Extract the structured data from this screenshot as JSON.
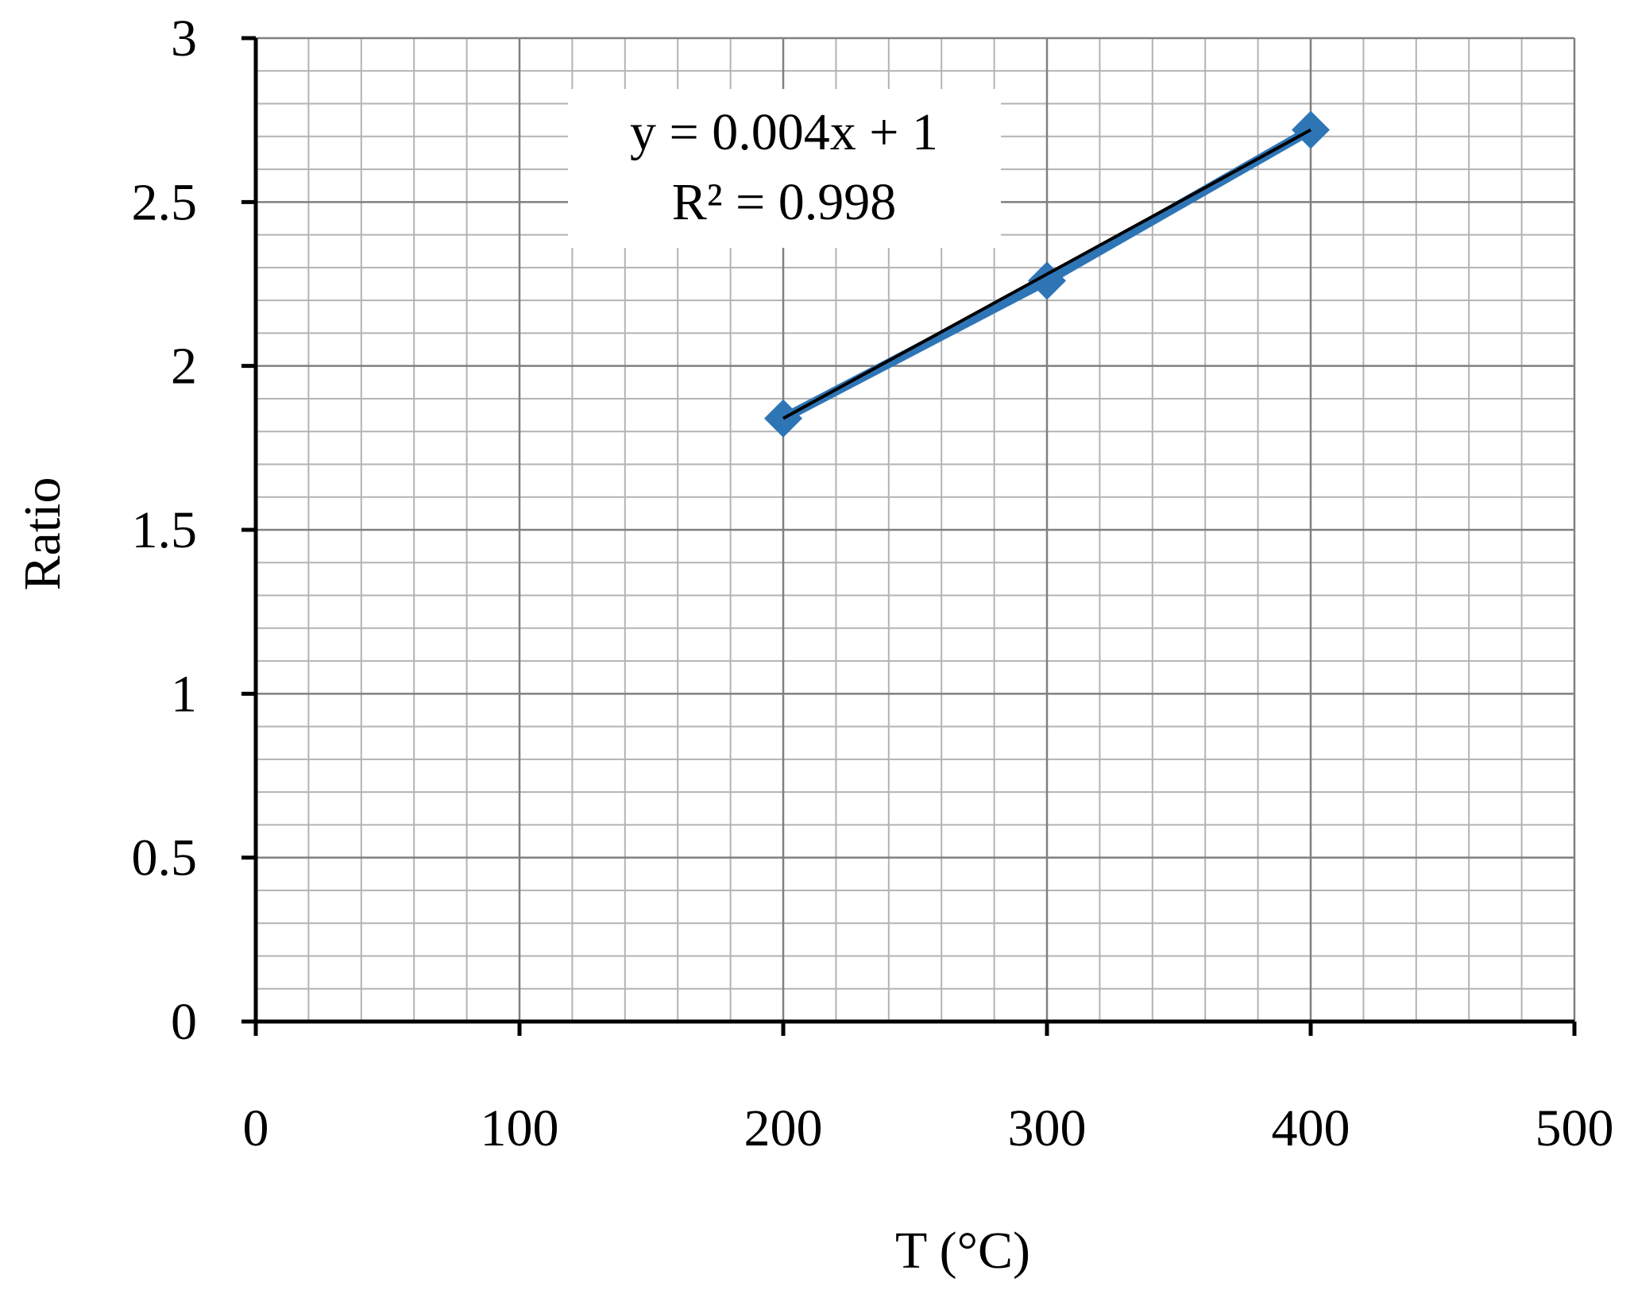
{
  "chart_data": {
    "type": "scatter",
    "xlabel": "T (°C)",
    "ylabel": "Ratio",
    "xlim": [
      0,
      500
    ],
    "ylim": [
      0,
      3
    ],
    "x_ticks": [
      "0",
      "100",
      "200",
      "300",
      "400",
      "500"
    ],
    "y_ticks": [
      "0",
      "0.5",
      "1",
      "1.5",
      "2",
      "2.5",
      "3"
    ],
    "grid": true,
    "series": [
      {
        "x": [
          200,
          300,
          400
        ],
        "y": [
          1.84,
          2.26,
          2.72
        ],
        "color": "#2e75b6",
        "marker": "diamond"
      }
    ],
    "trendline": {
      "type": "linear",
      "x": [
        200,
        400
      ],
      "y": [
        1.84,
        2.72
      ],
      "color": "#000000",
      "equation": "y = 0.004x + 1",
      "r_squared": "R² = 0.998"
    }
  }
}
